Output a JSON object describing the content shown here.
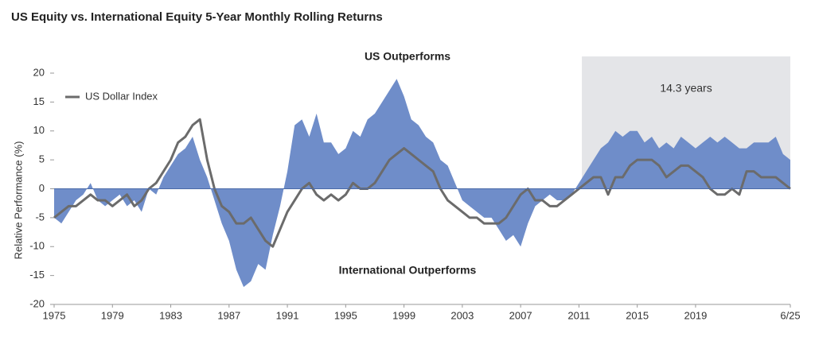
{
  "chart_data": {
    "type": "area-line",
    "title": "US Equity vs. International Equity 5-Year Monthly Rolling Returns",
    "ylabel": "Relative Performance (%)",
    "annotations": [
      "US Outperforms",
      "International Outperforms"
    ],
    "highlight": {
      "label": "14.3 years",
      "x_start": 2011.2,
      "x_end": 2025.5,
      "color": "#e4e5e8"
    },
    "xlim": [
      1975,
      2025.5
    ],
    "xticks": [
      1975,
      1979,
      1983,
      1987,
      1991,
      1995,
      1999,
      2003,
      2007,
      2011,
      2015,
      2019,
      {
        "value": 2025.5,
        "label": "6/25"
      }
    ],
    "ylim": [
      -20,
      20
    ],
    "yticks": [
      -20,
      -15,
      -10,
      -5,
      0,
      5,
      10,
      15,
      20
    ],
    "legend": "upper left",
    "x": [
      1975,
      1975.5,
      1976,
      1976.5,
      1977,
      1977.5,
      1978,
      1978.5,
      1979,
      1979.5,
      1980,
      1980.5,
      1981,
      1981.5,
      1982,
      1982.5,
      1983,
      1983.5,
      1984,
      1984.5,
      1985,
      1985.5,
      1986,
      1986.5,
      1987,
      1987.5,
      1988,
      1988.5,
      1989,
      1989.5,
      1990,
      1990.5,
      1991,
      1991.5,
      1992,
      1992.5,
      1993,
      1993.5,
      1994,
      1994.5,
      1995,
      1995.5,
      1996,
      1996.5,
      1997,
      1997.5,
      1998,
      1998.5,
      1999,
      1999.5,
      2000,
      2000.5,
      2001,
      2001.5,
      2002,
      2002.5,
      2003,
      2003.5,
      2004,
      2004.5,
      2005,
      2005.5,
      2006,
      2006.5,
      2007,
      2007.5,
      2008,
      2008.5,
      2009,
      2009.5,
      2010,
      2010.5,
      2011,
      2011.5,
      2012,
      2012.5,
      2013,
      2013.5,
      2014,
      2014.5,
      2015,
      2015.5,
      2016,
      2016.5,
      2017,
      2017.5,
      2018,
      2018.5,
      2019,
      2019.5,
      2020,
      2020.5,
      2021,
      2021.5,
      2022,
      2022.5,
      2023,
      2023.5,
      2024,
      2024.5,
      2025,
      2025.5
    ],
    "series": [
      {
        "kind": "area",
        "color": "#6f8dc9",
        "values": [
          -5,
          -6,
          -4,
          -2,
          -1,
          1,
          -2,
          -3,
          -2,
          -1,
          -3,
          -2,
          -4,
          0,
          -1,
          2,
          4,
          6,
          7,
          9,
          5,
          2,
          -2,
          -6,
          -9,
          -14,
          -17,
          -16,
          -13,
          -14,
          -8,
          -3,
          3,
          11,
          12,
          9,
          13,
          8,
          8,
          6,
          7,
          10,
          9,
          12,
          13,
          15,
          17,
          19,
          16,
          12,
          11,
          9,
          8,
          5,
          4,
          1,
          -2,
          -3,
          -4,
          -5,
          -5,
          -7,
          -9,
          -8,
          -10,
          -6,
          -3,
          -2,
          -1,
          -2,
          -2,
          -1,
          1,
          3,
          5,
          7,
          8,
          10,
          9,
          10,
          10,
          8,
          9,
          7,
          8,
          7,
          9,
          8,
          7,
          8,
          9,
          8,
          9,
          8,
          7,
          7,
          8,
          8,
          8,
          9,
          6,
          5
        ]
      },
      {
        "kind": "line",
        "name": "US Dollar Index",
        "color": "#6b6b6b",
        "values": [
          -5,
          -4,
          -3,
          -3,
          -2,
          -1,
          -2,
          -2,
          -3,
          -2,
          -1,
          -3,
          -2,
          0,
          1,
          3,
          5,
          8,
          9,
          11,
          12,
          5,
          0,
          -3,
          -4,
          -6,
          -6,
          -5,
          -7,
          -9,
          -10,
          -7,
          -4,
          -2,
          0,
          1,
          -1,
          -2,
          -1,
          -2,
          -1,
          1,
          0,
          0,
          1,
          3,
          5,
          6,
          7,
          6,
          5,
          4,
          3,
          0,
          -2,
          -3,
          -4,
          -5,
          -5,
          -6,
          -6,
          -6,
          -5,
          -3,
          -1,
          0,
          -2,
          -2,
          -3,
          -3,
          -2,
          -1,
          0,
          1,
          2,
          2,
          -1,
          2,
          2,
          4,
          5,
          5,
          5,
          4,
          2,
          3,
          4,
          4,
          3,
          2,
          0,
          -1,
          -1,
          0,
          -1,
          3,
          3,
          2,
          2,
          2,
          1,
          0
        ]
      }
    ]
  }
}
